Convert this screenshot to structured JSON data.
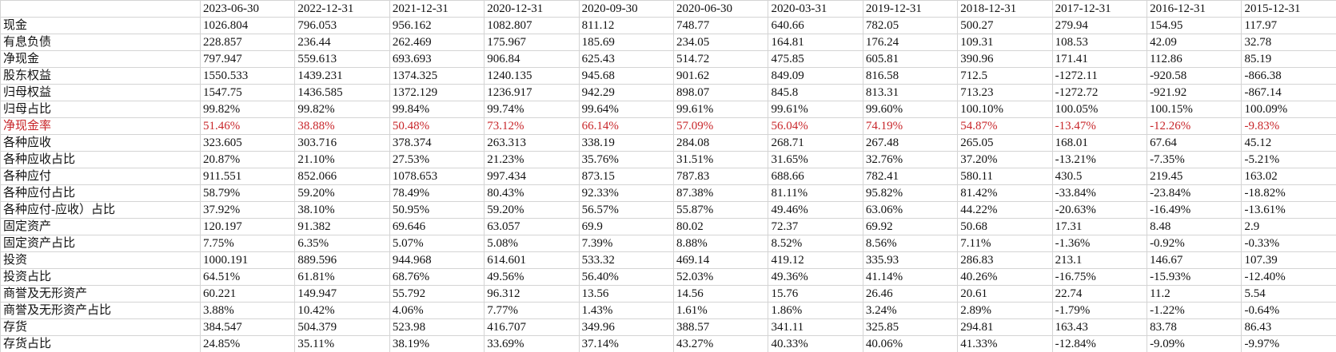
{
  "table": {
    "header": [
      "2023-06-30",
      "2022-12-31",
      "2021-12-31",
      "2020-12-31",
      "2020-09-30",
      "2020-06-30",
      "2020-03-31",
      "2019-12-31",
      "2018-12-31",
      "2017-12-31",
      "2016-12-31",
      "2015-12-31"
    ],
    "rows": [
      {
        "label": "现金",
        "cells": [
          "1026.804",
          "796.053",
          "956.162",
          "1082.807",
          "811.12",
          "748.77",
          "640.66",
          "782.05",
          "500.27",
          "279.94",
          "154.95",
          "117.97"
        ]
      },
      {
        "label": "有息负债",
        "cells": [
          "228.857",
          "236.44",
          "262.469",
          "175.967",
          "185.69",
          "234.05",
          "164.81",
          "176.24",
          "109.31",
          "108.53",
          "42.09",
          "32.78"
        ]
      },
      {
        "label": "净现金",
        "cells": [
          "797.947",
          "559.613",
          "693.693",
          "906.84",
          "625.43",
          "514.72",
          "475.85",
          "605.81",
          "390.96",
          "171.41",
          "112.86",
          "85.19"
        ]
      },
      {
        "label": "股东权益",
        "cells": [
          "1550.533",
          "1439.231",
          "1374.325",
          "1240.135",
          "945.68",
          "901.62",
          "849.09",
          "816.58",
          "712.5",
          "-1272.11",
          "-920.58",
          "-866.38"
        ]
      },
      {
        "label": "归母权益",
        "cells": [
          "1547.75",
          "1436.585",
          "1372.129",
          "1236.917",
          "942.29",
          "898.07",
          "845.8",
          "813.31",
          "713.23",
          "-1272.72",
          "-921.92",
          "-867.14"
        ]
      },
      {
        "label": "归母占比",
        "cells": [
          "99.82%",
          "99.82%",
          "99.84%",
          "99.74%",
          "99.64%",
          "99.61%",
          "99.61%",
          "99.60%",
          "100.10%",
          "100.05%",
          "100.15%",
          "100.09%"
        ]
      },
      {
        "label": "净现金率",
        "cells": [
          "51.46%",
          "38.88%",
          "50.48%",
          "73.12%",
          "66.14%",
          "57.09%",
          "56.04%",
          "74.19%",
          "54.87%",
          "-13.47%",
          "-12.26%",
          "-9.83%"
        ]
      },
      {
        "label": "各种应收",
        "cells": [
          "323.605",
          "303.716",
          "378.374",
          "263.313",
          "338.19",
          "284.08",
          "268.71",
          "267.48",
          "265.05",
          "168.01",
          "67.64",
          "45.12"
        ]
      },
      {
        "label": "各种应收占比",
        "cells": [
          "20.87%",
          "21.10%",
          "27.53%",
          "21.23%",
          "35.76%",
          "31.51%",
          "31.65%",
          "32.76%",
          "37.20%",
          "-13.21%",
          "-7.35%",
          "-5.21%"
        ]
      },
      {
        "label": "各种应付",
        "cells": [
          "911.551",
          "852.066",
          "1078.653",
          "997.434",
          "873.15",
          "787.83",
          "688.66",
          "782.41",
          "580.11",
          "430.5",
          "219.45",
          "163.02"
        ]
      },
      {
        "label": "各种应付占比",
        "cells": [
          "58.79%",
          "59.20%",
          "78.49%",
          "80.43%",
          "92.33%",
          "87.38%",
          "81.11%",
          "95.82%",
          "81.42%",
          "-33.84%",
          "-23.84%",
          "-18.82%"
        ]
      },
      {
        "label": "各种应付-应收）占比",
        "cells": [
          "37.92%",
          "38.10%",
          "50.95%",
          "59.20%",
          "56.57%",
          "55.87%",
          "49.46%",
          "63.06%",
          "44.22%",
          "-20.63%",
          "-16.49%",
          "-13.61%"
        ]
      },
      {
        "label": "固定资产",
        "cells": [
          "120.197",
          "91.382",
          "69.646",
          "63.057",
          "69.9",
          "80.02",
          "72.37",
          "69.92",
          "50.68",
          "17.31",
          "8.48",
          "2.9"
        ]
      },
      {
        "label": "固定资产占比",
        "cells": [
          "7.75%",
          "6.35%",
          "5.07%",
          "5.08%",
          "7.39%",
          "8.88%",
          "8.52%",
          "8.56%",
          "7.11%",
          "-1.36%",
          "-0.92%",
          "-0.33%"
        ]
      },
      {
        "label": "投资",
        "cells": [
          "1000.191",
          "889.596",
          "944.968",
          "614.601",
          "533.32",
          "469.14",
          "419.12",
          "335.93",
          "286.83",
          "213.1",
          "146.67",
          "107.39"
        ]
      },
      {
        "label": "投资占比",
        "cells": [
          "64.51%",
          "61.81%",
          "68.76%",
          "49.56%",
          "56.40%",
          "52.03%",
          "49.36%",
          "41.14%",
          "40.26%",
          "-16.75%",
          "-15.93%",
          "-12.40%"
        ]
      },
      {
        "label": "商誉及无形资产",
        "cells": [
          "60.221",
          "149.947",
          "55.792",
          "96.312",
          "13.56",
          "14.56",
          "15.76",
          "26.46",
          "20.61",
          "22.74",
          "11.2",
          "5.54"
        ]
      },
      {
        "label": "商誉及无形资产占比",
        "cells": [
          "3.88%",
          "10.42%",
          "4.06%",
          "7.77%",
          "1.43%",
          "1.61%",
          "1.86%",
          "3.24%",
          "2.89%",
          "-1.79%",
          "-1.22%",
          "-0.64%"
        ]
      },
      {
        "label": "存货",
        "cells": [
          "384.547",
          "504.379",
          "523.98",
          "416.707",
          "349.96",
          "388.57",
          "341.11",
          "325.85",
          "294.81",
          "163.43",
          "83.78",
          "86.43"
        ]
      },
      {
        "label": "存货占比",
        "cells": [
          "24.85%",
          "35.11%",
          "38.19%",
          "33.69%",
          "37.14%",
          "43.27%",
          "40.33%",
          "40.06%",
          "41.33%",
          "-12.84%",
          "-9.09%",
          "-9.97%"
        ]
      }
    ]
  }
}
